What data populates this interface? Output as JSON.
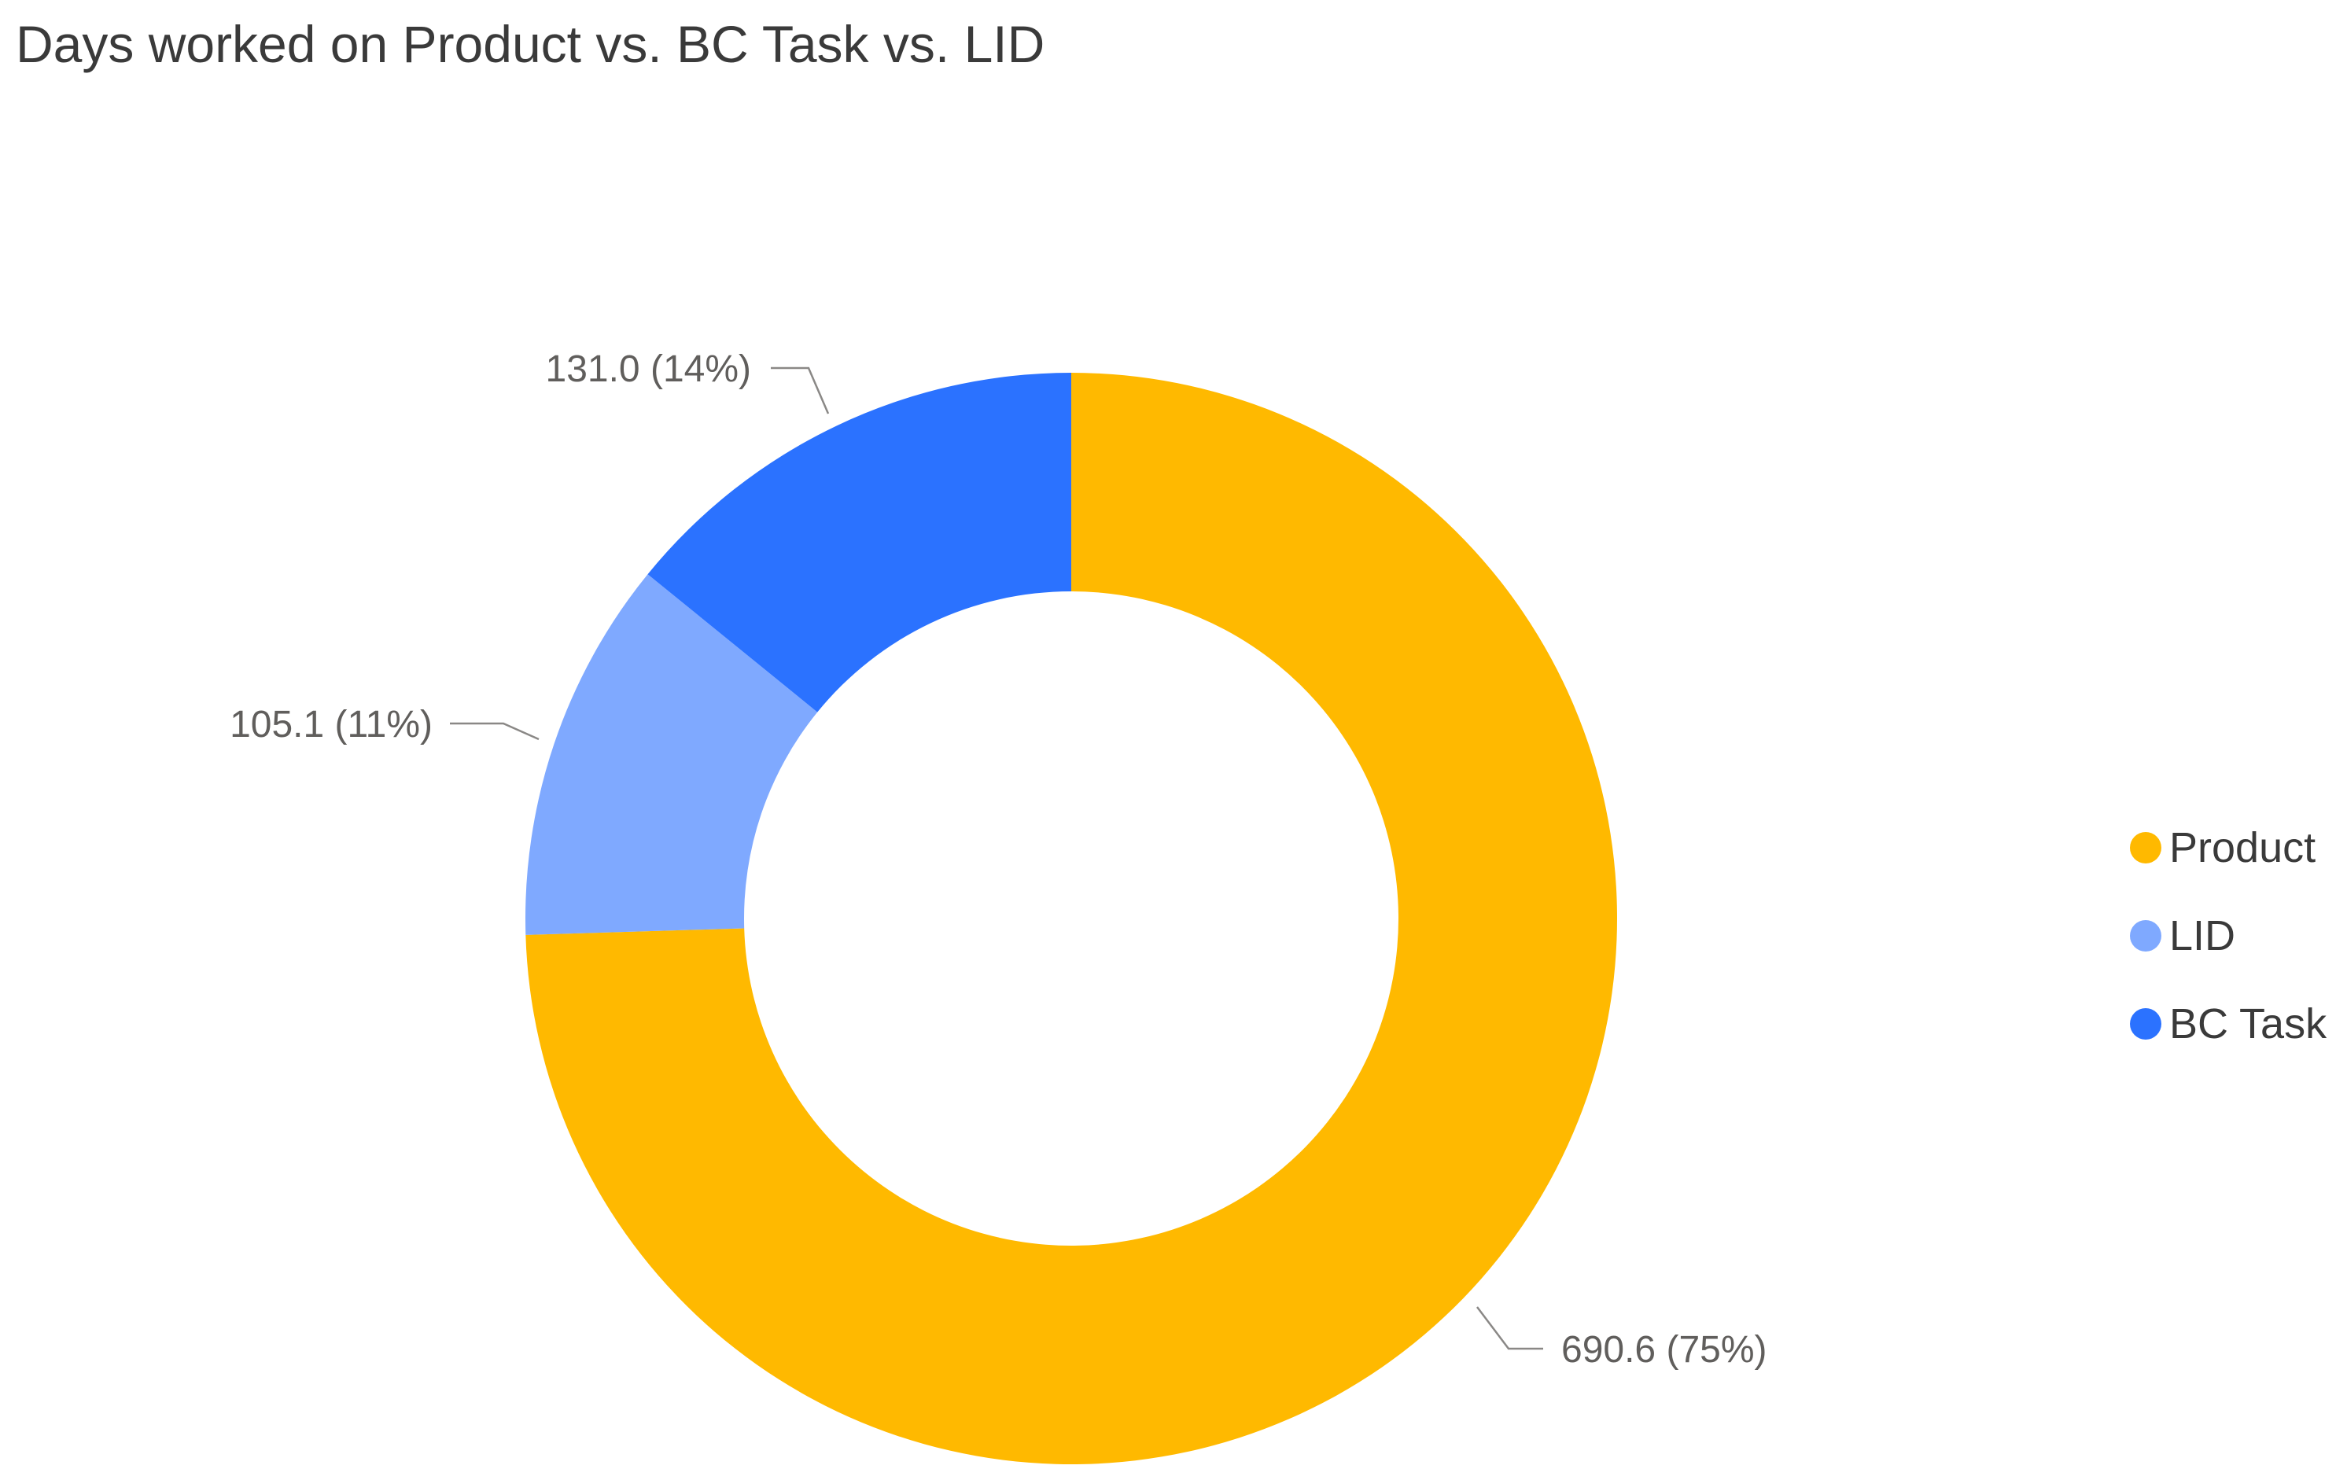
{
  "chart_data": {
    "type": "pie",
    "donut": true,
    "title": "Days worked on Product vs. BC Task vs. LID",
    "legend_position": "right",
    "slices": [
      {
        "name": "Product",
        "value": 690.6,
        "percent_label": "75%",
        "label": "690.6 (75%)",
        "color": "#FFB900"
      },
      {
        "name": "LID",
        "value": 105.1,
        "percent_label": "11%",
        "label": "105.1 (11%)",
        "color": "#7FA9FF"
      },
      {
        "name": "BC Task",
        "value": 131.0,
        "percent_label": "14%",
        "label": "131.0 (14%)",
        "color": "#2B72FF"
      }
    ],
    "legend": [
      "Product",
      "LID",
      "BC Task"
    ]
  }
}
